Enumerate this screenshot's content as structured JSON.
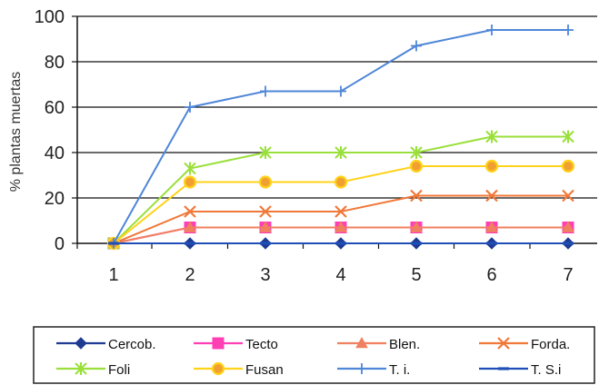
{
  "chart_data": {
    "type": "line",
    "title": "",
    "xlabel": "",
    "ylabel": "% plantas muertas",
    "x": [
      1,
      2,
      3,
      4,
      5,
      6,
      7
    ],
    "x_tick_labels": [
      "1",
      "2",
      "3",
      "4",
      "5",
      "6",
      "7"
    ],
    "ylim": [
      0,
      100
    ],
    "y_ticks": [
      0,
      20,
      40,
      60,
      80,
      100
    ],
    "y_tick_labels": [
      "0",
      "20",
      "40",
      "60",
      "80",
      "100"
    ],
    "grid": "horizontal",
    "legend_position": "bottom",
    "series": [
      {
        "name": "Cercob.",
        "color": "#1f3a93",
        "marker": "diamond",
        "values": [
          0,
          0,
          0,
          0,
          0,
          0,
          0
        ]
      },
      {
        "name": "Tecto",
        "color": "#ff3fb4",
        "marker": "square",
        "values": [
          0,
          7,
          7,
          7,
          7,
          7,
          7
        ]
      },
      {
        "name": "Blen.",
        "color": "#f08060",
        "marker": "triangle",
        "values": [
          0,
          7,
          7,
          7,
          7,
          7,
          7
        ]
      },
      {
        "name": "Forda.",
        "color": "#f07838",
        "marker": "x",
        "values": [
          0,
          14,
          14,
          14,
          21,
          21,
          21
        ]
      },
      {
        "name": "Foli",
        "color": "#99e03a",
        "marker": "star",
        "values": [
          0,
          33,
          40,
          40,
          40,
          47,
          47
        ]
      },
      {
        "name": "Fusan",
        "color": "#ffd21a",
        "marker": "circle",
        "values": [
          0,
          27,
          27,
          27,
          34,
          34,
          34
        ]
      },
      {
        "name": "T. i.",
        "color": "#4f86d8",
        "marker": "plus",
        "values": [
          0,
          60,
          67,
          67,
          87,
          94,
          94
        ]
      },
      {
        "name": "T. S.i",
        "color": "#1f4fb5",
        "marker": "dash",
        "values": [
          0,
          0,
          0,
          0,
          0,
          0,
          0
        ]
      }
    ]
  }
}
